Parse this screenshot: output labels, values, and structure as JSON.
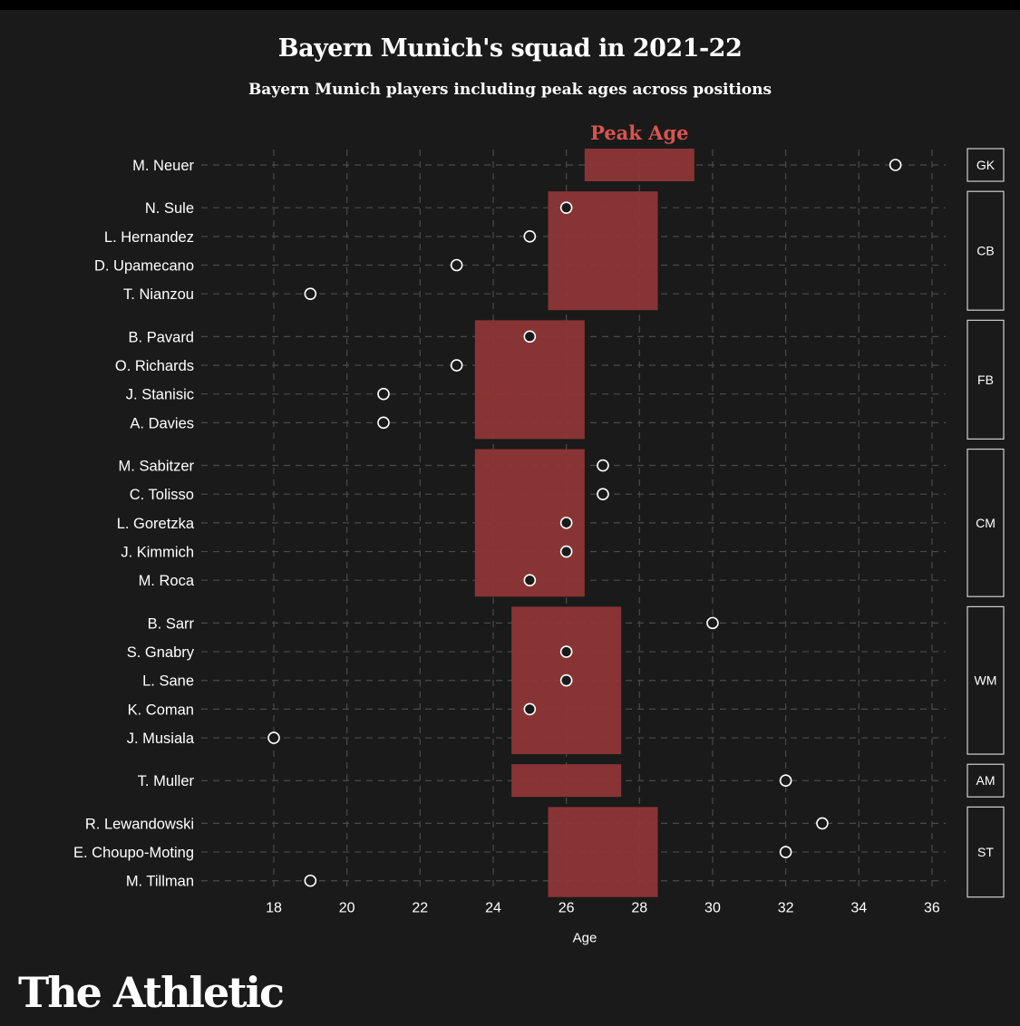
{
  "header": {
    "title": "Bayern Munich's squad in 2021-22",
    "subtitle": "Bayern Munich players including peak ages across positions"
  },
  "brand": {
    "name": "The Athletic"
  },
  "chart_data": {
    "type": "dot-range",
    "title": "Bayern Munich's squad in 2021-22",
    "subtitle": "Bayern Munich players including peak ages across positions",
    "xlabel": "Age",
    "xlim": [
      17,
      37
    ],
    "xticks": [
      18,
      20,
      22,
      24,
      26,
      28,
      30,
      32,
      34,
      36
    ],
    "grid": true,
    "range_label": "Peak Age",
    "colors": {
      "range": "#8f3636",
      "range_label": "#d9544f",
      "dot_fill": "#1a1a1a",
      "dot_stroke": "#ffffff",
      "grid": "#4a4a4a"
    },
    "groups": [
      {
        "position": "GK",
        "peak_range": [
          26.5,
          29.5
        ],
        "players": [
          {
            "name": "M. Neuer",
            "age": 35
          }
        ]
      },
      {
        "position": "CB",
        "peak_range": [
          25.5,
          28.5
        ],
        "players": [
          {
            "name": "N. Sule",
            "age": 26
          },
          {
            "name": "L. Hernandez",
            "age": 25
          },
          {
            "name": "D. Upamecano",
            "age": 23
          },
          {
            "name": "T. Nianzou",
            "age": 19
          }
        ]
      },
      {
        "position": "FB",
        "peak_range": [
          23.5,
          26.5
        ],
        "players": [
          {
            "name": "B. Pavard",
            "age": 25
          },
          {
            "name": "O. Richards",
            "age": 23
          },
          {
            "name": "J. Stanisic",
            "age": 21
          },
          {
            "name": "A. Davies",
            "age": 21
          }
        ]
      },
      {
        "position": "CM",
        "peak_range": [
          23.5,
          26.5
        ],
        "players": [
          {
            "name": "M. Sabitzer",
            "age": 27
          },
          {
            "name": "C. Tolisso",
            "age": 27
          },
          {
            "name": "L. Goretzka",
            "age": 26
          },
          {
            "name": "J. Kimmich",
            "age": 26
          },
          {
            "name": "M. Roca",
            "age": 25
          }
        ]
      },
      {
        "position": "WM",
        "peak_range": [
          24.5,
          27.5
        ],
        "players": [
          {
            "name": "B. Sarr",
            "age": 30
          },
          {
            "name": "S. Gnabry",
            "age": 26
          },
          {
            "name": "L. Sane",
            "age": 26
          },
          {
            "name": "K. Coman",
            "age": 25
          },
          {
            "name": "J. Musiala",
            "age": 18
          }
        ]
      },
      {
        "position": "AM",
        "peak_range": [
          24.5,
          27.5
        ],
        "players": [
          {
            "name": "T. Muller",
            "age": 32
          }
        ]
      },
      {
        "position": "ST",
        "peak_range": [
          25.5,
          28.5
        ],
        "players": [
          {
            "name": "R. Lewandowski",
            "age": 33
          },
          {
            "name": "E. Choupo-Moting",
            "age": 32
          },
          {
            "name": "M. Tillman",
            "age": 19
          }
        ]
      }
    ]
  }
}
